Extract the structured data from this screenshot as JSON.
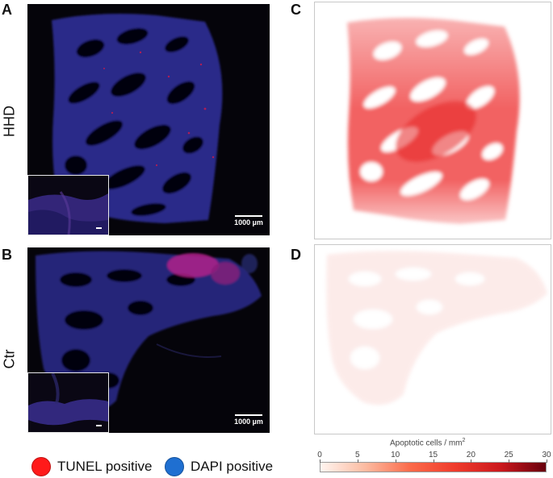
{
  "panels": {
    "A": {
      "letter": "A",
      "row_label": "HHD",
      "scale_label": "1000 µm"
    },
    "B": {
      "letter": "B",
      "row_label": "Ctr",
      "scale_label": "1000 µm"
    },
    "C": {
      "letter": "C"
    },
    "D": {
      "letter": "D"
    }
  },
  "colorbar": {
    "title": "Apoptotic cells / mm",
    "title_superscript": "2",
    "ticks": [
      "0",
      "5",
      "10",
      "15",
      "20",
      "25",
      "30"
    ],
    "range": [
      0,
      30
    ],
    "colors": [
      "#fff5f0",
      "#fcbba1",
      "#fb6a4a",
      "#ef3b2c",
      "#cb181d",
      "#67000d"
    ]
  },
  "legend": {
    "items": [
      {
        "label": "TUNEL positive",
        "color": "#ff1a1a"
      },
      {
        "label": "DAPI positive",
        "color": "#1f6fd1"
      }
    ]
  }
}
